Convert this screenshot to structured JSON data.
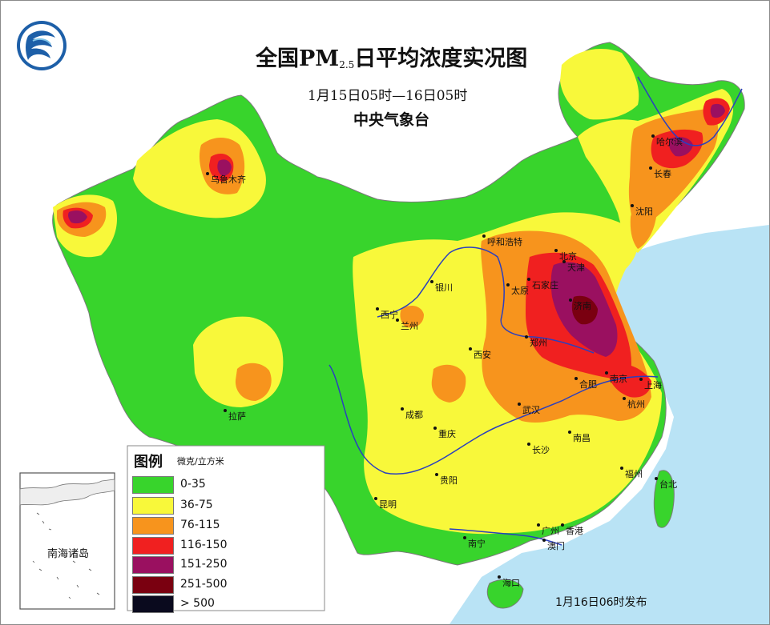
{
  "header": {
    "title_prefix": "全国PM",
    "title_sub": "2.5",
    "title_suffix": "日平均浓度实况图",
    "subtitle": "1月15日05时—16日05时",
    "agency": "中央气象台"
  },
  "legend": {
    "title": "图例",
    "unit": "微克/立方米",
    "items": [
      {
        "label": "0-35",
        "color": "#38d42c"
      },
      {
        "label": "36-75",
        "color": "#f8f83a"
      },
      {
        "label": "76-115",
        "color": "#f7941d"
      },
      {
        "label": "116-150",
        "color": "#f02020"
      },
      {
        "label": "151-250",
        "color": "#9a1060"
      },
      {
        "label": "251-500",
        "color": "#7a0010"
      },
      {
        "label": "> 500",
        "color": "#0a0a1e"
      }
    ]
  },
  "inset": {
    "label": "南海诸岛"
  },
  "release": "1月16日06时发布",
  "cities": [
    {
      "name": "乌鲁木齐"
    },
    {
      "name": "哈尔滨"
    },
    {
      "name": "长春"
    },
    {
      "name": "沈阳"
    },
    {
      "name": "呼和浩特"
    },
    {
      "name": "北京"
    },
    {
      "name": "天津"
    },
    {
      "name": "石家庄"
    },
    {
      "name": "太原"
    },
    {
      "name": "济南"
    },
    {
      "name": "银川"
    },
    {
      "name": "西宁"
    },
    {
      "name": "兰州"
    },
    {
      "name": "郑州"
    },
    {
      "name": "西安"
    },
    {
      "name": "南京"
    },
    {
      "name": "合肥"
    },
    {
      "name": "上海"
    },
    {
      "name": "杭州"
    },
    {
      "name": "武汉"
    },
    {
      "name": "成都"
    },
    {
      "name": "重庆"
    },
    {
      "name": "长沙"
    },
    {
      "name": "南昌"
    },
    {
      "name": "拉萨"
    },
    {
      "name": "贵阳"
    },
    {
      "name": "昆明"
    },
    {
      "name": "福州"
    },
    {
      "name": "台北"
    },
    {
      "name": "南宁"
    },
    {
      "name": "广州"
    },
    {
      "name": "香港"
    },
    {
      "name": "澳门"
    },
    {
      "name": "海口"
    }
  ],
  "colors": {
    "sea": "#b9e3f5",
    "border": "#7a7a7a",
    "river": "#2a3fbf"
  }
}
